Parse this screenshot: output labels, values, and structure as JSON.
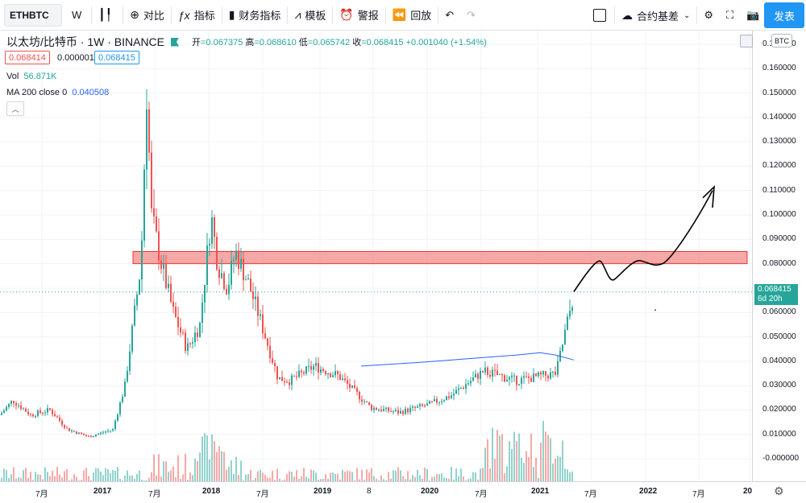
{
  "toolbar": {
    "symbol": "ETHBTC",
    "interval": "W",
    "compare": "对比",
    "indicators": "指标",
    "financials": "财务指标",
    "templates": "模板",
    "alert": "警报",
    "replay": "回放",
    "basis": "合约基差",
    "publish": "发表"
  },
  "legend": {
    "title": "以太坊/比特币 · 1W · BINANCE",
    "open_label": "开",
    "open": "0.067375",
    "high_label": "高",
    "high": "0.068610",
    "low_label": "低",
    "low": "0.065742",
    "close_label": "收",
    "close": "0.068415",
    "change": "+0.001040 (+1.54%)",
    "bid": "0.068414",
    "spread": "0.000001",
    "ask": "0.068415"
  },
  "volume": {
    "label": "Vol",
    "value": "56.871K"
  },
  "ma": {
    "label": "MA 200 close 0",
    "value": "0.040508"
  },
  "price_axis": {
    "currency": "BTC",
    "ticks": [
      "0.170000",
      "0.160000",
      "0.150000",
      "0.140000",
      "0.130000",
      "0.120000",
      "0.110000",
      "0.100000",
      "0.090000",
      "0.080000",
      "0.070000",
      "0.060000",
      "0.050000",
      "0.040000",
      "0.030000",
      "0.020000",
      "0.010000",
      "-0.000000"
    ],
    "current_price": "0.068415",
    "countdown": "6d 20h"
  },
  "time_axis": {
    "labels": [
      {
        "text": "7月",
        "bold": false
      },
      {
        "text": "2017",
        "bold": true
      },
      {
        "text": "7月",
        "bold": false
      },
      {
        "text": "2018",
        "bold": true
      },
      {
        "text": "7月",
        "bold": false
      },
      {
        "text": "2019",
        "bold": true
      },
      {
        "text": "8",
        "bold": false
      },
      {
        "text": "2020",
        "bold": true
      },
      {
        "text": "7月",
        "bold": false
      },
      {
        "text": "2021",
        "bold": true
      },
      {
        "text": "7月",
        "bold": false
      },
      {
        "text": "2022",
        "bold": true
      },
      {
        "text": "7月",
        "bold": false
      },
      {
        "text": "20",
        "bold": true
      }
    ]
  },
  "colors": {
    "up": "#26a69a",
    "down": "#ef5350",
    "ma": "#2962ff",
    "zone": "#f28b88",
    "accent": "#2196f3"
  },
  "chart_data": {
    "type": "candlestick",
    "symbol": "ETHBTC",
    "interval": "1W",
    "ylim": [
      -0.005,
      0.175
    ],
    "x": [
      "2016-04",
      "2016-07",
      "2016-10",
      "2017-01",
      "2017-03",
      "2017-05",
      "2017-06",
      "2017-07",
      "2017-09",
      "2017-11",
      "2018-01",
      "2018-02",
      "2018-04",
      "2018-05",
      "2018-06",
      "2018-08",
      "2018-09",
      "2018-11",
      "2019-01",
      "2019-04",
      "2019-06",
      "2019-09",
      "2019-12",
      "2020-03",
      "2020-05",
      "2020-07",
      "2020-09",
      "2020-11",
      "2021-01",
      "2021-02",
      "2021-03",
      "2021-04"
    ],
    "close": [
      0.018,
      0.024,
      0.018,
      0.009,
      0.012,
      0.045,
      0.1,
      0.13,
      0.08,
      0.06,
      0.055,
      0.1,
      0.072,
      0.085,
      0.075,
      0.05,
      0.033,
      0.032,
      0.032,
      0.038,
      0.034,
      0.021,
      0.019,
      0.022,
      0.026,
      0.026,
      0.036,
      0.032,
      0.028,
      0.036,
      0.032,
      0.068415
    ],
    "ma200": {
      "name": "MA 200 close 0",
      "x": [
        "2019-08",
        "2020-06",
        "2021-01",
        "2021-04"
      ],
      "values": [
        0.038,
        0.041,
        0.043,
        0.040508
      ]
    },
    "resistance_zone": [
      0.08,
      0.085
    ],
    "projection": [
      0.069,
      0.081,
      0.073,
      0.081,
      0.08,
      0.11
    ]
  }
}
